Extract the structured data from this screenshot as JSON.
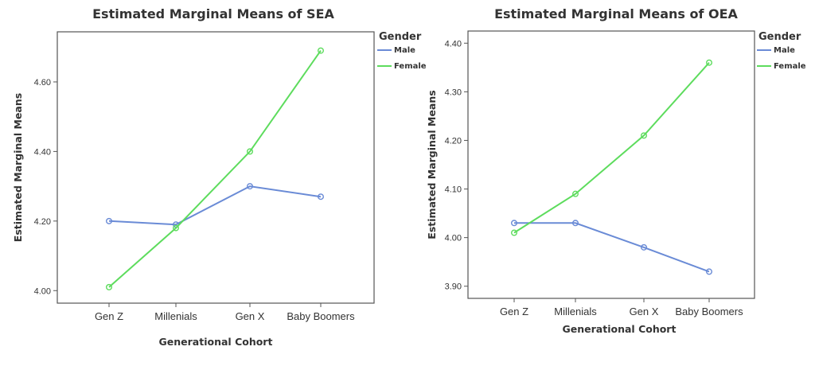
{
  "chart_data": [
    {
      "type": "line",
      "title": "Estimated Marginal Means of SEA",
      "xlabel": "Generational Cohort",
      "ylabel": "Estimated Marginal Means",
      "categories": [
        "Gen Z",
        "Millenials",
        "Gen X",
        "Baby Boomers"
      ],
      "ylim": [
        3.964,
        4.744
      ],
      "yticks": [
        4.0,
        4.2,
        4.4,
        4.6
      ],
      "ytick_labels": [
        "4.00",
        "4.20",
        "4.40",
        "4.60"
      ],
      "legend_title": "Gender",
      "legend_position": "right",
      "grid": false,
      "series": [
        {
          "name": "Male",
          "color": "#6a8bd6",
          "values": [
            4.2,
            4.19,
            4.3,
            4.27
          ]
        },
        {
          "name": "Female",
          "color": "#5ddc5d",
          "values": [
            4.01,
            4.18,
            4.4,
            4.69
          ]
        }
      ]
    },
    {
      "type": "line",
      "title": "Estimated Marginal Means of OEA",
      "xlabel": "Generational Cohort",
      "ylabel": "Estimated Marginal Means",
      "categories": [
        "Gen Z",
        "Millenials",
        "Gen X",
        "Baby Boomers"
      ],
      "ylim": [
        3.875,
        4.425
      ],
      "yticks": [
        3.9,
        4.0,
        4.1,
        4.2,
        4.3,
        4.4
      ],
      "ytick_labels": [
        "3.90",
        "4.00",
        "4.10",
        "4.20",
        "4.30",
        "4.40"
      ],
      "legend_title": "Gender",
      "legend_position": "right",
      "grid": false,
      "series": [
        {
          "name": "Male",
          "color": "#6a8bd6",
          "values": [
            4.03,
            4.03,
            3.98,
            3.93
          ]
        },
        {
          "name": "Female",
          "color": "#5ddc5d",
          "values": [
            4.01,
            4.09,
            4.21,
            4.36
          ]
        }
      ]
    }
  ]
}
